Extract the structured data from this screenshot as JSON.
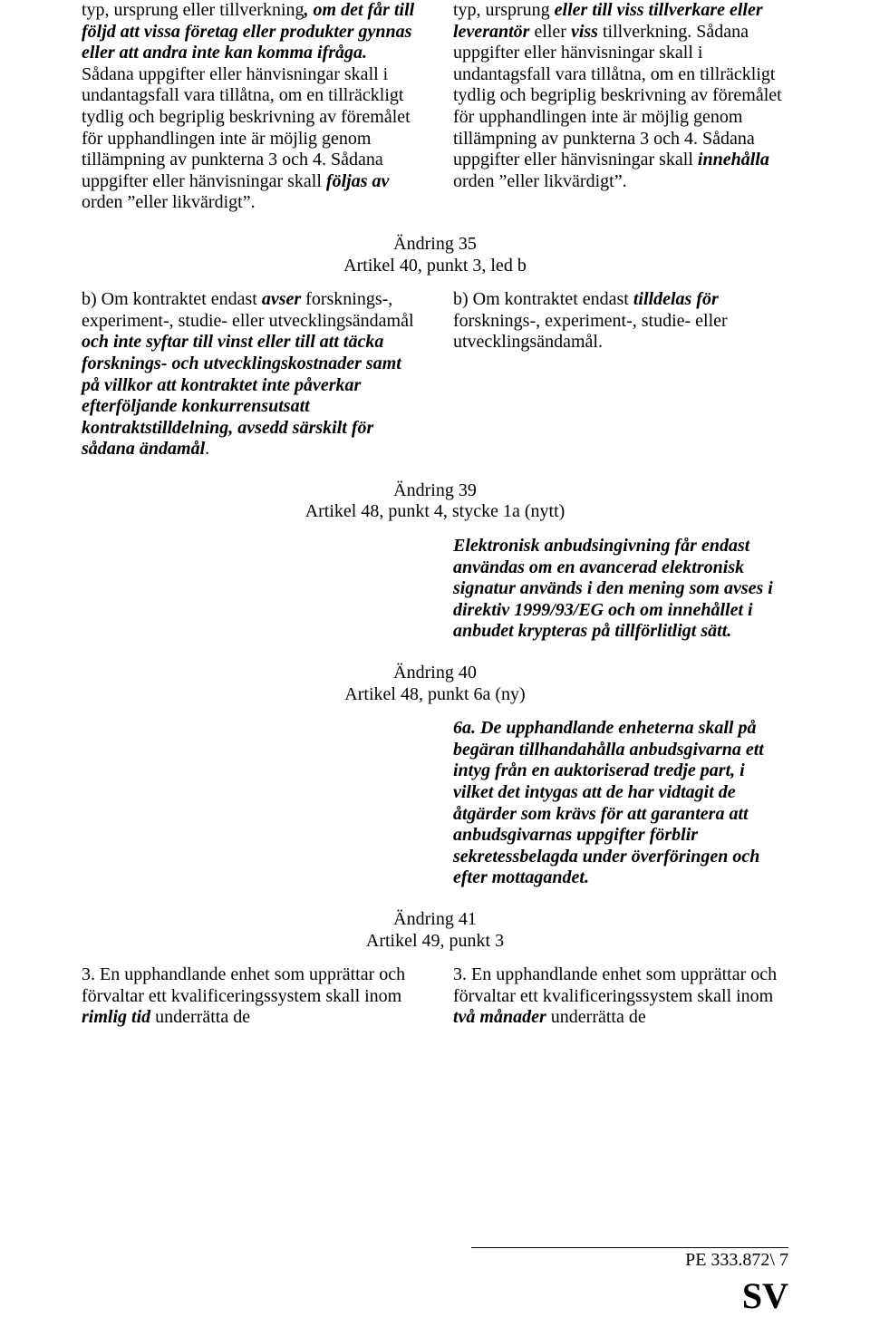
{
  "top": {
    "left": "typ, ursprung eller tillverkning, om det får till följd att vissa företag eller produkter gynnas eller att andra inte kan komma ifråga. Sådana uppgifter eller hänvisningar skall i undantagsfall vara tillåtna, om en tillräckligt tydlig och begriplig beskrivning av föremålet för upphandlingen inte är möjlig genom tillämpning av punkterna 3 och 4. Sådana uppgifter eller hänvisningar skall följas av orden \"eller likvärdigt\".",
    "right": "typ, ursprung eller till viss tillverkare eller leverantör eller viss tillverkning. Sådana uppgifter eller hänvisningar skall i undantagsfall vara tillåtna, om en tillräckligt tydlig och begriplig beskrivning av föremålet för upphandlingen inte är möjlig genom tillämpning av punkterna 3 och 4. Sådana uppgifter eller hänvisningar skall innehålla orden \"eller likvärdigt\"."
  },
  "amend35": {
    "title": "Ändring 35",
    "subtitle": "Artikel 40, punkt 3, led b",
    "left": "b) Om kontraktet endast avser forsknings-, experiment-, studie- eller utvecklingsändamål och inte syftar till vinst eller till att täcka forsknings- och utvecklingskostnader samt på villkor att kontraktet inte påverkar efterföljande konkurrensutsatt kontraktstilldelning, avsedd särskilt för sådana ändamål.",
    "right": "b) Om kontraktet endast tilldelas för forsknings-, experiment-, studie- eller utvecklingsändamål."
  },
  "amend39": {
    "title": "Ändring 39",
    "subtitle": "Artikel 48, punkt 4, stycke 1a (nytt)",
    "right": "Elektronisk anbudsingivning får endast användas om en avancerad elektronisk signatur används i den mening som avses i direktiv 1999/93/EG och om innehållet i anbudet krypteras på tillförlitligt sätt."
  },
  "amend40": {
    "title": "Ändring 40",
    "subtitle": "Artikel 48, punkt 6a (ny)",
    "right": "6a. De upphandlande enheterna skall på begäran tillhandahålla anbudsgivarna ett intyg från en auktoriserad tredje part, i vilket det intygas att de har vidtagit de åtgärder som krävs för att garantera att anbudsgivarnas uppgifter förblir sekretessbelagda under överföringen och efter mottagandet."
  },
  "amend41": {
    "title": "Ändring 41",
    "subtitle": "Artikel 49, punkt 3",
    "left": "3. En upphandlande enhet som upprättar och förvaltar ett kvalificeringssystem skall inom rimlig tid underrätta de",
    "right": "3. En upphandlande enhet som upprättar och förvaltar ett kvalificeringssystem skall inom två månader underrätta de"
  },
  "footer": {
    "pe": "PE 333.872\\ 7",
    "lang": "SV"
  }
}
